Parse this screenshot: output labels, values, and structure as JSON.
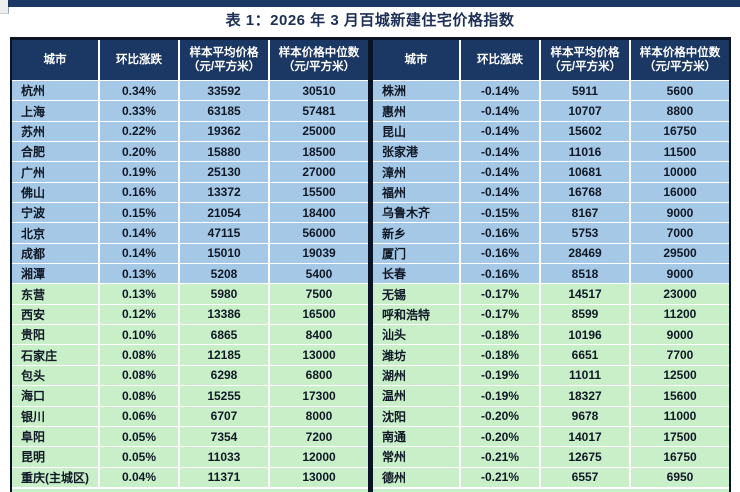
{
  "page": {
    "title": "表 1：2026 年 3 月百城新建住宅价格指数"
  },
  "colors": {
    "top_bar": "#1b3764",
    "header_bg": "#1b3764",
    "header_text": "#ffffff",
    "row_blue": "#a5c8e6",
    "row_green": "#c8efc8",
    "table_border": "#0a1424",
    "title_text": "#1c2f55",
    "cell_text": "#101826"
  },
  "columns": [
    "城市",
    "环比涨跌",
    "样本平均价格\n（元/平方米）",
    "样本价格中位数\n（元/平方米）"
  ],
  "tables": [
    {
      "name": "left",
      "rows": [
        {
          "city": "杭州",
          "change": "0.34%",
          "avg": "33592",
          "median": "30510",
          "tone": "blue"
        },
        {
          "city": "上海",
          "change": "0.33%",
          "avg": "63185",
          "median": "57481",
          "tone": "blue"
        },
        {
          "city": "苏州",
          "change": "0.22%",
          "avg": "19362",
          "median": "25000",
          "tone": "blue"
        },
        {
          "city": "合肥",
          "change": "0.20%",
          "avg": "15880",
          "median": "18500",
          "tone": "blue"
        },
        {
          "city": "广州",
          "change": "0.19%",
          "avg": "25130",
          "median": "27000",
          "tone": "blue"
        },
        {
          "city": "佛山",
          "change": "0.16%",
          "avg": "13372",
          "median": "15500",
          "tone": "blue"
        },
        {
          "city": "宁波",
          "change": "0.15%",
          "avg": "21054",
          "median": "18400",
          "tone": "blue"
        },
        {
          "city": "北京",
          "change": "0.14%",
          "avg": "47115",
          "median": "56000",
          "tone": "blue"
        },
        {
          "city": "成都",
          "change": "0.14%",
          "avg": "15010",
          "median": "19039",
          "tone": "blue"
        },
        {
          "city": "湘潭",
          "change": "0.13%",
          "avg": "5208",
          "median": "5400",
          "tone": "blue"
        },
        {
          "city": "东营",
          "change": "0.13%",
          "avg": "5980",
          "median": "7500",
          "tone": "green"
        },
        {
          "city": "西安",
          "change": "0.12%",
          "avg": "13386",
          "median": "16500",
          "tone": "green"
        },
        {
          "city": "贵阳",
          "change": "0.10%",
          "avg": "6865",
          "median": "8400",
          "tone": "green"
        },
        {
          "city": "石家庄",
          "change": "0.08%",
          "avg": "12185",
          "median": "13000",
          "tone": "green"
        },
        {
          "city": "包头",
          "change": "0.08%",
          "avg": "6298",
          "median": "6800",
          "tone": "green"
        },
        {
          "city": "海口",
          "change": "0.08%",
          "avg": "15255",
          "median": "17300",
          "tone": "green"
        },
        {
          "city": "银川",
          "change": "0.06%",
          "avg": "6707",
          "median": "8000",
          "tone": "green"
        },
        {
          "city": "阜阳",
          "change": "0.05%",
          "avg": "7354",
          "median": "7200",
          "tone": "green"
        },
        {
          "city": "昆明",
          "change": "0.05%",
          "avg": "11033",
          "median": "12000",
          "tone": "green"
        },
        {
          "city": "重庆(主城区)",
          "change": "0.04%",
          "avg": "11371",
          "median": "13000",
          "tone": "green"
        }
      ]
    },
    {
      "name": "right",
      "rows": [
        {
          "city": "株洲",
          "change": "-0.14%",
          "avg": "5911",
          "median": "5600",
          "tone": "blue"
        },
        {
          "city": "惠州",
          "change": "-0.14%",
          "avg": "10707",
          "median": "8800",
          "tone": "blue"
        },
        {
          "city": "昆山",
          "change": "-0.14%",
          "avg": "15602",
          "median": "16750",
          "tone": "blue"
        },
        {
          "city": "张家港",
          "change": "-0.14%",
          "avg": "11016",
          "median": "11500",
          "tone": "blue"
        },
        {
          "city": "漳州",
          "change": "-0.14%",
          "avg": "10681",
          "median": "10000",
          "tone": "blue"
        },
        {
          "city": "福州",
          "change": "-0.14%",
          "avg": "16768",
          "median": "16000",
          "tone": "blue"
        },
        {
          "city": "乌鲁木齐",
          "change": "-0.15%",
          "avg": "8167",
          "median": "9000",
          "tone": "blue"
        },
        {
          "city": "新乡",
          "change": "-0.16%",
          "avg": "5753",
          "median": "7000",
          "tone": "blue"
        },
        {
          "city": "厦门",
          "change": "-0.16%",
          "avg": "28469",
          "median": "29500",
          "tone": "blue"
        },
        {
          "city": "长春",
          "change": "-0.16%",
          "avg": "8518",
          "median": "9000",
          "tone": "blue"
        },
        {
          "city": "无锡",
          "change": "-0.17%",
          "avg": "14517",
          "median": "23000",
          "tone": "green"
        },
        {
          "city": "呼和浩特",
          "change": "-0.17%",
          "avg": "8599",
          "median": "11200",
          "tone": "green"
        },
        {
          "city": "汕头",
          "change": "-0.18%",
          "avg": "10196",
          "median": "9000",
          "tone": "green"
        },
        {
          "city": "潍坊",
          "change": "-0.18%",
          "avg": "6651",
          "median": "7700",
          "tone": "green"
        },
        {
          "city": "湖州",
          "change": "-0.19%",
          "avg": "11011",
          "median": "12500",
          "tone": "green"
        },
        {
          "city": "温州",
          "change": "-0.19%",
          "avg": "18327",
          "median": "15600",
          "tone": "green"
        },
        {
          "city": "沈阳",
          "change": "-0.20%",
          "avg": "9678",
          "median": "11000",
          "tone": "green"
        },
        {
          "city": "南通",
          "change": "-0.20%",
          "avg": "14017",
          "median": "17500",
          "tone": "green"
        },
        {
          "city": "常州",
          "change": "-0.21%",
          "avg": "12675",
          "median": "16750",
          "tone": "green"
        },
        {
          "city": "德州",
          "change": "-0.21%",
          "avg": "6557",
          "median": "6950",
          "tone": "green"
        }
      ]
    }
  ]
}
